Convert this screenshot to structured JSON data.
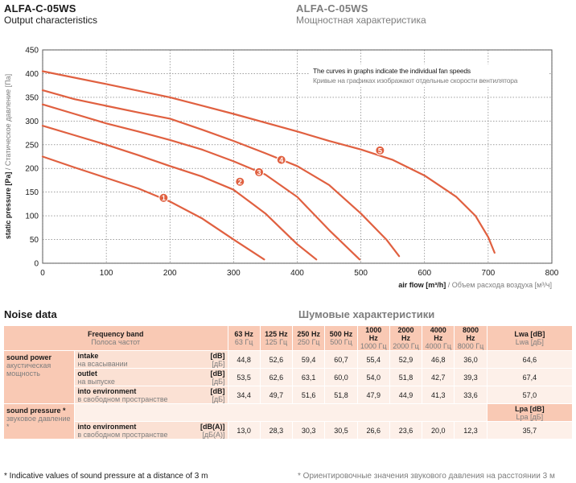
{
  "header": {
    "model_en": "ALFA-C-05WS",
    "subtitle_en": "Output characteristics",
    "model_ru": "ALFA-C-05WS",
    "subtitle_ru": "Мощностная характеристика"
  },
  "chart_data": {
    "type": "line",
    "annotation_en": "The curves in graphs indicate the individual fan speeds",
    "annotation_ru": "Кривые на графиках изображают отдельные скорости вентилятора",
    "ylabel_en": "static pressure [Pa]",
    "ylabel_ru": " / Статическое давление [Па]",
    "xlabel_en": "air flow [m³/h]",
    "xlabel_ru": " / Объем расхода воздуха [м³/ч]",
    "xlim": [
      0,
      800
    ],
    "ylim": [
      0,
      450
    ],
    "x_ticks": [
      0,
      100,
      200,
      300,
      400,
      500,
      600,
      700,
      800
    ],
    "y_ticks": [
      0,
      50,
      100,
      150,
      200,
      250,
      300,
      350,
      400,
      450
    ],
    "grid": true,
    "line_color": "#e06040",
    "series": [
      {
        "name": "1",
        "label_at": [
          190,
          138
        ],
        "x": [
          0,
          50,
          100,
          150,
          200,
          250,
          300,
          348
        ],
        "y": [
          225,
          202,
          180,
          158,
          130,
          95,
          50,
          8
        ]
      },
      {
        "name": "2",
        "label_at": [
          310,
          172
        ],
        "x": [
          0,
          50,
          100,
          150,
          200,
          250,
          300,
          350,
          400,
          430
        ],
        "y": [
          290,
          270,
          250,
          228,
          205,
          183,
          155,
          105,
          40,
          8
        ]
      },
      {
        "name": "3",
        "label_at": [
          340,
          192
        ],
        "x": [
          0,
          50,
          100,
          150,
          200,
          250,
          300,
          350,
          400,
          450,
          498
        ],
        "y": [
          335,
          315,
          295,
          278,
          260,
          240,
          215,
          187,
          140,
          70,
          8
        ]
      },
      {
        "name": "4",
        "label_at": [
          375,
          218
        ],
        "x": [
          0,
          50,
          100,
          150,
          200,
          250,
          300,
          350,
          400,
          450,
          500,
          540,
          560
        ],
        "y": [
          365,
          346,
          332,
          318,
          305,
          282,
          258,
          232,
          205,
          165,
          105,
          50,
          15
        ]
      },
      {
        "name": "5",
        "label_at": [
          530,
          238
        ],
        "x": [
          0,
          100,
          200,
          300,
          400,
          450,
          500,
          550,
          600,
          650,
          680,
          700,
          710
        ],
        "y": [
          405,
          378,
          350,
          315,
          278,
          258,
          240,
          218,
          185,
          140,
          100,
          55,
          22
        ]
      }
    ]
  },
  "noise": {
    "title_en": "Noise data",
    "title_ru": "Шумовые характеристики",
    "freq_en": "Frequency band",
    "freq_ru": "Полоса частот",
    "bands": [
      {
        "en": "63 Hz",
        "ru": "63 Гц"
      },
      {
        "en": "125 Hz",
        "ru": "125 Гц"
      },
      {
        "en": "250 Hz",
        "ru": "250 Гц"
      },
      {
        "en": "500 Hz",
        "ru": "500 Гц"
      },
      {
        "en": "1000 Hz",
        "ru": "1000 Гц"
      },
      {
        "en": "2000 Hz",
        "ru": "2000 Гц"
      },
      {
        "en": "4000 Hz",
        "ru": "4000 Гц"
      },
      {
        "en": "8000 Hz",
        "ru": "8000 Гц"
      }
    ],
    "lwa_en": "Lwa [dB]",
    "lwa_ru": "Lwa [дБ]",
    "lpa_en": "Lpa [dB]",
    "lpa_ru": "Lpa [дБ]",
    "power_en": "sound power",
    "power_ru": "акустическая мощность",
    "pressure_en": "sound pressure *",
    "pressure_ru": "звуковое давление *",
    "rows": [
      {
        "en": "intake",
        "ru": "на всасывании",
        "unit_en": "[dB]",
        "unit_ru": "[дБ]",
        "values": [
          "44,8",
          "52,6",
          "59,4",
          "60,7",
          "55,4",
          "52,9",
          "46,8",
          "36,0"
        ],
        "total": "64,6"
      },
      {
        "en": "outlet",
        "ru": "на выпуске",
        "unit_en": "[dB]",
        "unit_ru": "[дБ]",
        "values": [
          "53,5",
          "62,6",
          "63,1",
          "60,0",
          "54,0",
          "51,8",
          "42,7",
          "39,3"
        ],
        "total": "67,4"
      },
      {
        "en": "into environment",
        "ru": "в свободном пространстве",
        "unit_en": "[dB]",
        "unit_ru": "[дБ]",
        "values": [
          "34,4",
          "49,7",
          "51,6",
          "51,8",
          "47,9",
          "44,9",
          "41,3",
          "33,6"
        ],
        "total": "57,0"
      }
    ],
    "pressure_row": {
      "en": "into environment",
      "ru": "в свободном пространстве",
      "unit_en": "[dB(A)]",
      "unit_ru": "[дБ(А)]",
      "values": [
        "13,0",
        "28,3",
        "30,3",
        "30,5",
        "26,6",
        "23,6",
        "20,0",
        "12,3"
      ],
      "total": "35,7"
    }
  },
  "footnote": {
    "en": "* Indicative values of sound pressure at a distance of 3 m",
    "ru": "* Ориентировочные значения звукового давления на расстоянии 3 м"
  }
}
